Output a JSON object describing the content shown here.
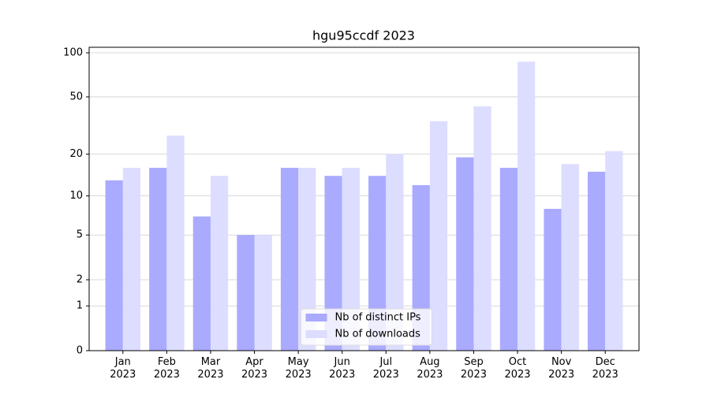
{
  "chart_data": {
    "type": "bar",
    "title": "hgu95ccdf 2023",
    "scale": "log1p",
    "categories": [
      "Jan\n2023",
      "Feb\n2023",
      "Mar\n2023",
      "Apr\n2023",
      "May\n2023",
      "Jun\n2023",
      "Jul\n2023",
      "Aug\n2023",
      "Sep\n2023",
      "Oct\n2023",
      "Nov\n2023",
      "Dec\n2023"
    ],
    "series": [
      {
        "name": "Nb of distinct IPs",
        "color": "#aaaaff",
        "values": [
          13,
          16,
          7,
          5,
          16,
          14,
          14,
          12,
          19,
          16,
          8,
          15
        ]
      },
      {
        "name": "Nb of downloads",
        "color": "#ddddff",
        "values": [
          16,
          27,
          14,
          5,
          16,
          16,
          20,
          34,
          43,
          87,
          17,
          21
        ]
      }
    ],
    "ylim": [
      0,
      109
    ],
    "yticks": [
      0,
      1,
      2,
      5,
      10,
      20,
      50,
      100
    ],
    "grid": true,
    "legend": "lower center"
  }
}
